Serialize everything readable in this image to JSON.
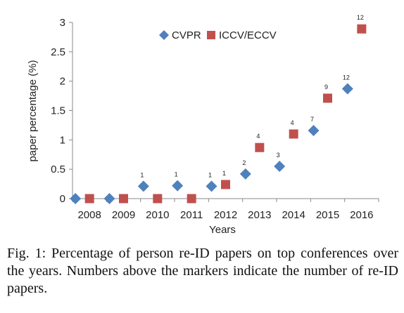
{
  "chart_data": {
    "type": "scatter",
    "xlabel": "Years",
    "ylabel": "paper percentage (%)",
    "categories": [
      "2008",
      "2009",
      "2010",
      "2011",
      "2012",
      "2013",
      "2014",
      "2015",
      "2016"
    ],
    "y_ticks": [
      "0",
      "0.5",
      "1",
      "1.5",
      "2",
      "2.5",
      "3"
    ],
    "ylim": [
      0,
      3
    ],
    "grid": false,
    "legend": "top",
    "series": [
      {
        "name": "CVPR",
        "color": "#4F81BD",
        "marker": "diamond",
        "values": [
          0,
          0,
          0.21,
          0.22,
          0.21,
          0.42,
          0.55,
          1.16,
          1.87
        ],
        "counts": [
          "",
          "",
          "1",
          "1",
          "1",
          "2",
          "3",
          "7",
          "12"
        ]
      },
      {
        "name": "ICCV/ECCV",
        "color": "#C0504D",
        "marker": "square",
        "values": [
          0,
          0,
          0,
          0,
          0.24,
          0.87,
          1.1,
          1.71,
          2.89
        ],
        "counts": [
          "",
          "",
          "",
          "",
          "1",
          "4",
          "4",
          "9",
          "12"
        ]
      }
    ]
  },
  "caption": "Fig. 1: Percentage of person re-ID papers on top conferences over the years. Numbers above the markers indicate the number of re-ID papers."
}
